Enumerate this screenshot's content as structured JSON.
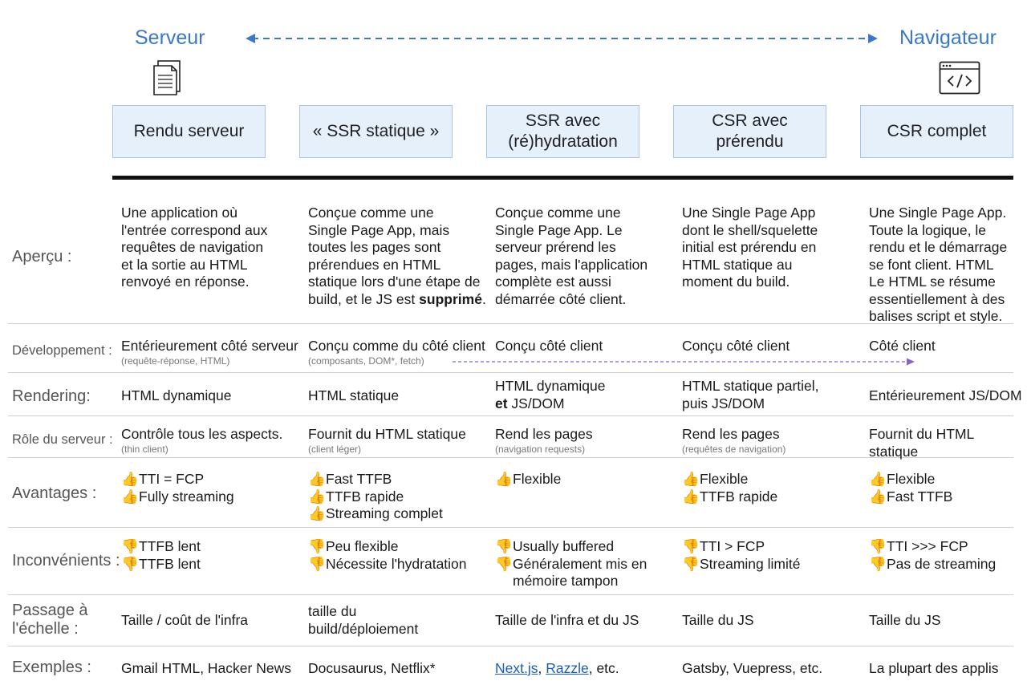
{
  "header": {
    "left_label": "Serveur",
    "right_label": "Navigateur",
    "icons": {
      "left": "document-icon",
      "right": "browser-code-icon"
    }
  },
  "columns": [
    "Rendu serveur",
    "« SSR statique »",
    "SSR avec (ré)hydratation",
    "CSR avec prérendu",
    "CSR complet"
  ],
  "rows": {
    "apercu": {
      "label": "Aperçu :",
      "cells": [
        [
          "Une application où",
          "l'entrée correspond aux",
          "requêtes de navigation",
          "et la sortie au HTML",
          "renvoyé en réponse."
        ],
        [
          "Conçue comme une",
          "Single Page App, mais",
          "toutes les pages sont",
          "prérendues en HTML",
          "statique lors d'une étape de",
          "build, et le JS est"
        ],
        [
          "Conçue comme une",
          "Single Page App. Le",
          "serveur prérend les",
          "pages, mais l'application",
          "complète est aussi",
          "démarrée côté client."
        ],
        [
          "Une Single Page App",
          "dont le shell/squelette",
          "initial est prérendu en",
          "HTML statique au",
          "moment du build."
        ],
        [
          "Une Single Page App.",
          "Toute la logique, le",
          "rendu et le démarrage",
          "se font client. HTML",
          "Le HTML se résume",
          "essentiellement à des",
          "balises script et style."
        ]
      ],
      "col2_bold": "supprimé",
      "col2_end": "."
    },
    "developpement": {
      "label": "Développement :",
      "cells": [
        "Entérieurement côté serveur",
        "Conçu comme du côté client",
        "Conçu côté client",
        "Conçu côté client",
        "Côté client"
      ],
      "subs": [
        "(requête-réponse, HTML)",
        "(composants, DOM*, fetch)",
        "",
        "",
        ""
      ]
    },
    "rendering": {
      "label": "Rendering:",
      "cells": [
        "HTML dynamique",
        "HTML statique",
        "HTML dynamique",
        "HTML statique partiel,",
        "Entérieurement JS/DOM"
      ],
      "col3_line2_bold": "et",
      "col3_line2_rest": " JS/DOM",
      "col4_line2": "puis JS/DOM"
    },
    "role": {
      "label": "Rôle du serveur :",
      "cells": [
        "Contrôle tous les aspects.",
        "Fournit du HTML statique",
        "Rend les pages",
        "Rend les pages",
        "Fournit du HTML"
      ],
      "subs": [
        "(thin client)",
        "(client léger)",
        "(navigation requests)",
        "(requêtes de navigation)",
        ""
      ],
      "col5_line2": "statique"
    },
    "avantages": {
      "label": "Avantages :",
      "thumb": "👍",
      "cells": [
        [
          "TTI = FCP",
          "Fully streaming"
        ],
        [
          "Fast TTFB",
          "TTFB rapide",
          "Streaming complet"
        ],
        [
          "Flexible"
        ],
        [
          "Flexible",
          "TTFB rapide"
        ],
        [
          "Flexible",
          "Fast TTFB"
        ]
      ]
    },
    "inconvenients": {
      "label": "Inconvénients :",
      "thumb": "👎",
      "cells": [
        [
          "TTFB lent",
          "TTFB lent"
        ],
        [
          "Peu flexible",
          "Nécessite l'hydratation"
        ],
        [
          "Usually buffered",
          "Généralement mis en"
        ],
        [
          "TTI > FCP",
          "Streaming limité"
        ],
        [
          "TTI >>> FCP",
          "Pas de streaming"
        ]
      ],
      "col3_cont": "mémoire tampon"
    },
    "passage": {
      "label1": "Passage à",
      "label2": "l'échelle :",
      "cells": [
        "Taille / coût de l'infra",
        "taille du",
        "Taille de l'infra et du JS",
        "Taille du JS",
        "Taille du JS"
      ],
      "col2_line2": "build/déploiement"
    },
    "exemples": {
      "label": "Exemples :",
      "cells": [
        "Gmail HTML, Hacker News",
        "Docusaurus, Netflix*",
        "",
        "Gatsby, Vuepress, etc.",
        "La plupart des applis"
      ],
      "col3_link1": "Next.js",
      "col3_sep": ", ",
      "col3_link2": "Razzle",
      "col3_rest": ", etc."
    }
  },
  "colors": {
    "accent": "#3b78c9",
    "header_fill": "#e6f0fb",
    "arrow_purple": "#8a63c9"
  }
}
